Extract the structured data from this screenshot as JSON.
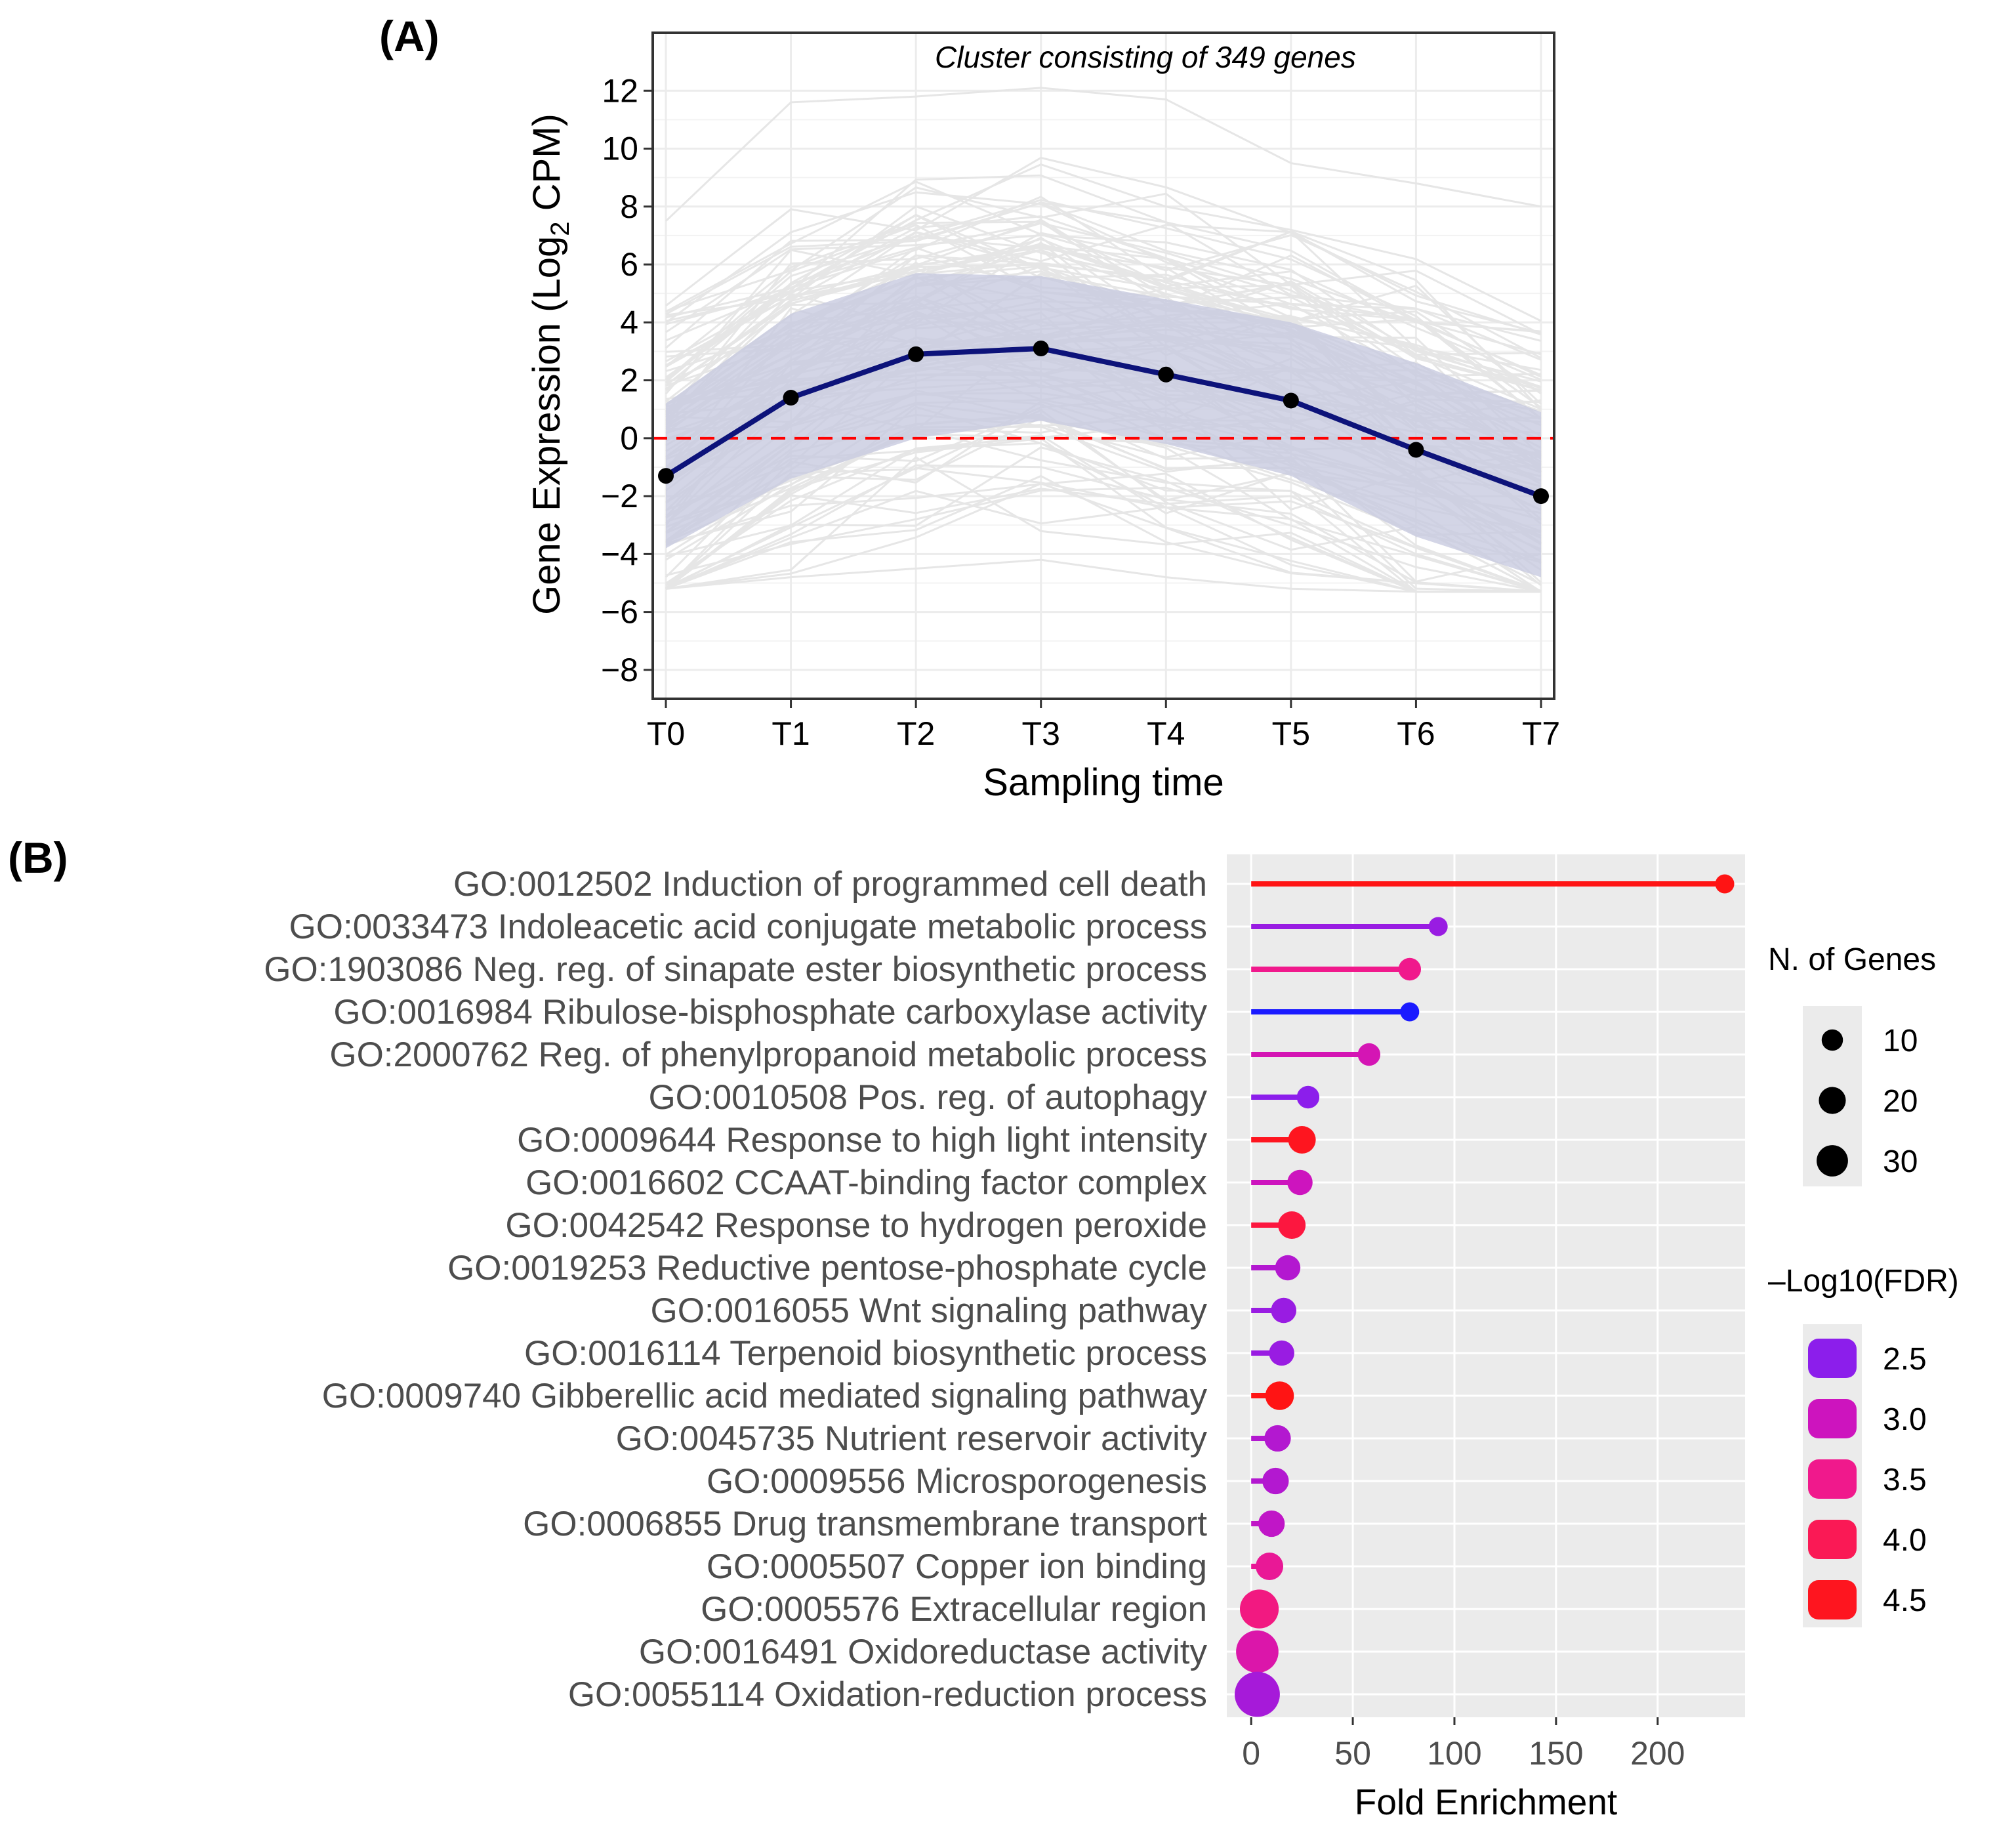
{
  "colors": {
    "mean_line": "#0d137a",
    "ribbon": "#c8cae0",
    "gene_lines": "#e6e6e6",
    "zero_line": "#ff0000",
    "panel_b_bg": "#ebebeb",
    "fdr_low": "#8a1ef0",
    "fdr_high": "#ff1a1a"
  },
  "chart_data": [
    {
      "type": "line",
      "panel_label": "(A)",
      "annotation": "Cluster consisting of 349 genes",
      "xlabel": "Sampling time",
      "ylabel_main": "Gene Expression (Log",
      "ylabel_sub": "2",
      "ylabel_end": " CPM)",
      "categories": [
        "T0",
        "T1",
        "T2",
        "T3",
        "T4",
        "T5",
        "T6",
        "T7"
      ],
      "y_ticks": [
        "12",
        "10",
        "8",
        "6",
        "4",
        "2",
        "0",
        "−2",
        "−4",
        "−6",
        "−8"
      ],
      "y_tick_values": [
        12,
        10,
        8,
        6,
        4,
        2,
        0,
        -2,
        -4,
        -6,
        -8
      ],
      "ylim": [
        -9,
        14
      ],
      "reference_line": 0,
      "series": [
        {
          "name": "mean",
          "values": [
            -1.3,
            1.4,
            2.9,
            3.1,
            2.2,
            1.3,
            -0.4,
            -2.0
          ]
        }
      ],
      "ribbon": {
        "upper": [
          1.2,
          4.3,
          5.7,
          5.6,
          4.8,
          4.0,
          2.6,
          0.9
        ],
        "lower": [
          -3.8,
          -1.4,
          0.0,
          0.6,
          -0.2,
          -1.3,
          -3.4,
          -4.8
        ]
      },
      "gene_envelope": {
        "upper": [
          7.5,
          11.6,
          11.8,
          12.1,
          11.7,
          9.5,
          8.8,
          8.0
        ],
        "lower": [
          -5.2,
          -4.8,
          -4.5,
          -4.2,
          -4.8,
          -5.2,
          -5.3,
          -5.3
        ]
      },
      "grid": true
    },
    {
      "type": "lollipop",
      "panel_label": "(B)",
      "xlabel": "Fold Enrichment",
      "x_ticks": [
        "0",
        "50",
        "100",
        "150",
        "200"
      ],
      "x_tick_values": [
        0,
        50,
        100,
        150,
        200
      ],
      "xlim": [
        -12,
        243
      ],
      "terms": [
        {
          "label": "GO:0012502 Induction of programmed cell death",
          "fold": 233,
          "genes": 2,
          "fdr": 4.6
        },
        {
          "label": "GO:0033473 Indoleacetic acid conjugate metabolic process",
          "fold": 92,
          "genes": 2,
          "fdr": 2.6
        },
        {
          "label": "GO:1903086 Neg. reg. of sinapate ester biosynthetic process",
          "fold": 78,
          "genes": 4,
          "fdr": 3.5
        },
        {
          "label": "GO:0016984 Ribulose-bisphosphate carboxylase activity",
          "fold": 78,
          "genes": 2,
          "fdr": 2.2
        },
        {
          "label": "GO:2000762 Reg. of phenylpropanoid metabolic process",
          "fold": 58,
          "genes": 4,
          "fdr": 3.1
        },
        {
          "label": "GO:0010508 Pos. reg. of autophagy",
          "fold": 28,
          "genes": 4,
          "fdr": 2.5
        },
        {
          "label": "GO:0009644 Response to high light intensity",
          "fold": 25,
          "genes": 8,
          "fdr": 4.5
        },
        {
          "label": "GO:0016602 CCAAT-binding factor complex",
          "fold": 24,
          "genes": 6,
          "fdr": 3.0
        },
        {
          "label": "GO:0042542 Response to hydrogen peroxide",
          "fold": 20,
          "genes": 8,
          "fdr": 4.2
        },
        {
          "label": "GO:0019253 Reductive pentose-phosphate cycle",
          "fold": 18,
          "genes": 6,
          "fdr": 2.8
        },
        {
          "label": "GO:0016055 Wnt signaling pathway",
          "fold": 16,
          "genes": 6,
          "fdr": 2.6
        },
        {
          "label": "GO:0016114 Terpenoid biosynthetic process",
          "fold": 15,
          "genes": 6,
          "fdr": 2.6
        },
        {
          "label": "GO:0009740 Gibberellic acid mediated signaling pathway",
          "fold": 14,
          "genes": 9,
          "fdr": 4.6
        },
        {
          "label": "GO:0045735 Nutrient reservoir activity",
          "fold": 13,
          "genes": 7,
          "fdr": 2.8
        },
        {
          "label": "GO:0009556 Microsporogenesis",
          "fold": 12,
          "genes": 7,
          "fdr": 2.8
        },
        {
          "label": "GO:0006855 Drug transmembrane transport",
          "fold": 10,
          "genes": 7,
          "fdr": 2.9
        },
        {
          "label": "GO:0005507 Copper ion binding",
          "fold": 9,
          "genes": 8,
          "fdr": 3.4
        },
        {
          "label": "GO:0005576 Extracellular region",
          "fold": 4,
          "genes": 22,
          "fdr": 3.6
        },
        {
          "label": "GO:0016491 Oxidoreductase activity",
          "fold": 3,
          "genes": 28,
          "fdr": 3.2
        },
        {
          "label": "GO:0055114 Oxidation-reduction process",
          "fold": 3,
          "genes": 33,
          "fdr": 2.7
        }
      ],
      "legend_size": {
        "title": "N. of Genes",
        "items": [
          "10",
          "20",
          "30"
        ],
        "values": [
          10,
          20,
          30
        ]
      },
      "legend_color": {
        "title": "–Log10(FDR)",
        "items": [
          "2.5",
          "3.0",
          "3.5",
          "4.0",
          "4.5"
        ],
        "values": [
          2.5,
          3.0,
          3.5,
          4.0,
          4.5
        ]
      }
    }
  ]
}
